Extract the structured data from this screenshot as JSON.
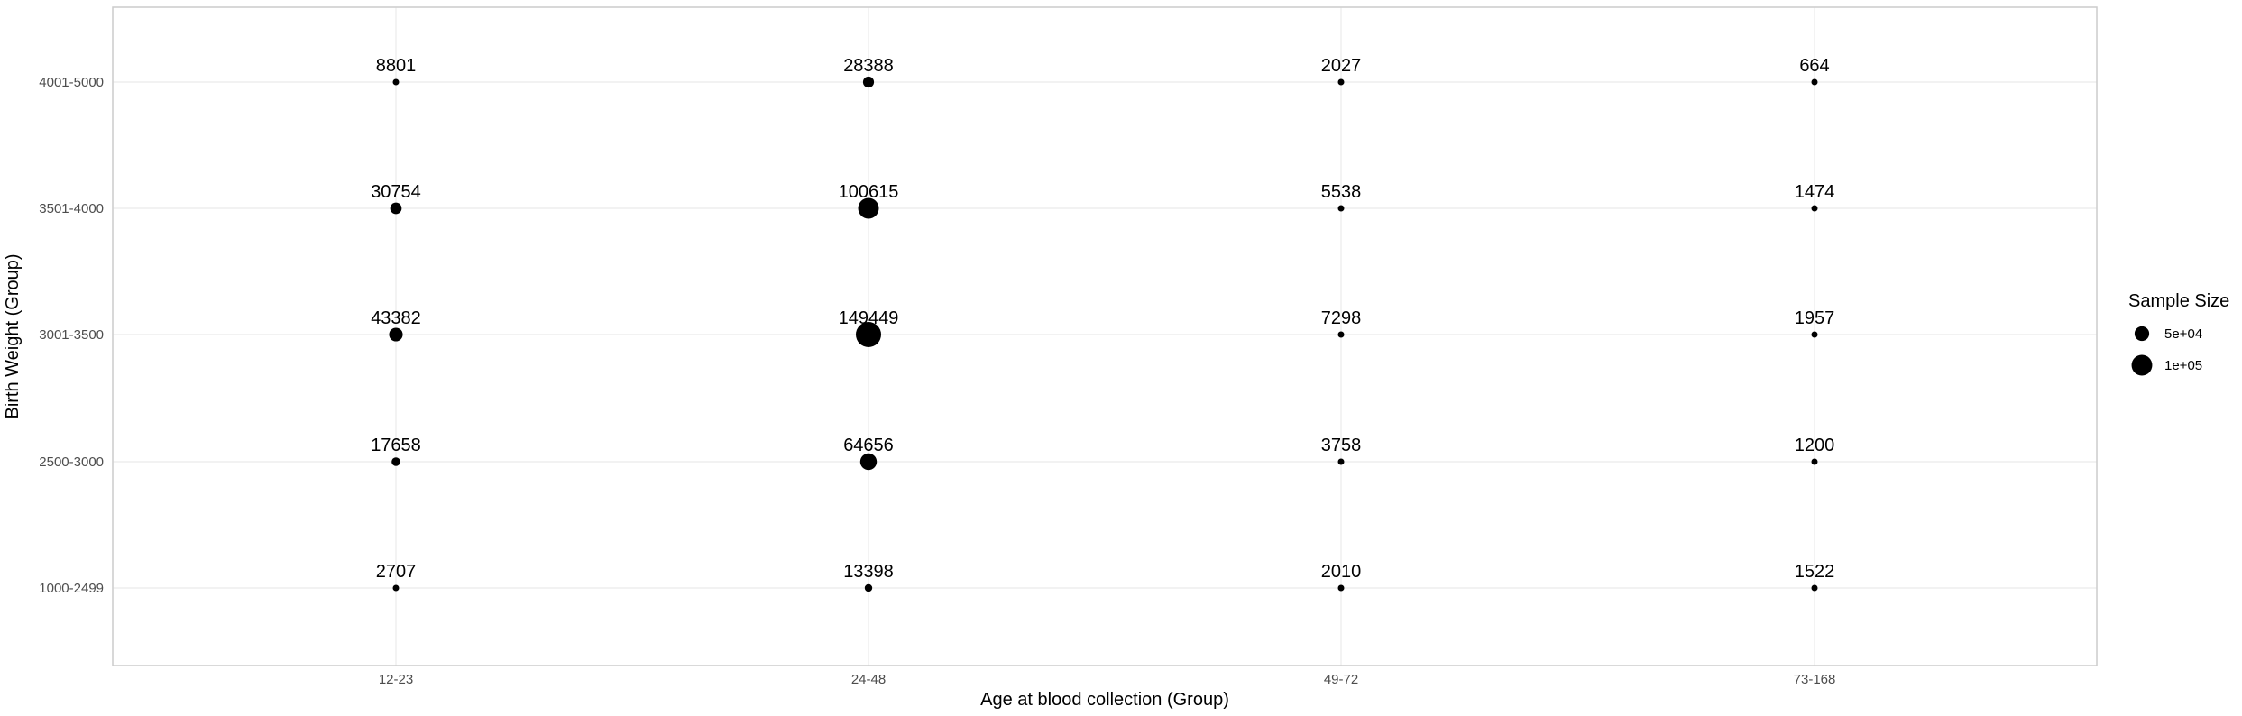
{
  "chart_data": {
    "type": "scatter",
    "title": "",
    "xlabel": "Age at blood collection (Group)",
    "ylabel": "Birth Weight (Group)",
    "x_categories": [
      "12-23",
      "24-48",
      "49-72",
      "73-168"
    ],
    "y_categories": [
      "1000-2499",
      "2500-3000",
      "3001-3500",
      "3501-4000",
      "4001-5000"
    ],
    "points": [
      {
        "x": "12-23",
        "y": "1000-2499",
        "n": 2707
      },
      {
        "x": "24-48",
        "y": "1000-2499",
        "n": 13398
      },
      {
        "x": "49-72",
        "y": "1000-2499",
        "n": 2010
      },
      {
        "x": "73-168",
        "y": "1000-2499",
        "n": 1522
      },
      {
        "x": "12-23",
        "y": "2500-3000",
        "n": 17658
      },
      {
        "x": "24-48",
        "y": "2500-3000",
        "n": 64656
      },
      {
        "x": "49-72",
        "y": "2500-3000",
        "n": 3758
      },
      {
        "x": "73-168",
        "y": "2500-3000",
        "n": 1200
      },
      {
        "x": "12-23",
        "y": "3001-3500",
        "n": 43382
      },
      {
        "x": "24-48",
        "y": "3001-3500",
        "n": 149449
      },
      {
        "x": "49-72",
        "y": "3001-3500",
        "n": 7298
      },
      {
        "x": "73-168",
        "y": "3001-3500",
        "n": 1957
      },
      {
        "x": "12-23",
        "y": "3501-4000",
        "n": 30754
      },
      {
        "x": "24-48",
        "y": "3501-4000",
        "n": 100615
      },
      {
        "x": "49-72",
        "y": "3501-4000",
        "n": 5538
      },
      {
        "x": "73-168",
        "y": "3501-4000",
        "n": 1474
      },
      {
        "x": "12-23",
        "y": "4001-5000",
        "n": 8801
      },
      {
        "x": "24-48",
        "y": "4001-5000",
        "n": 28388
      },
      {
        "x": "49-72",
        "y": "4001-5000",
        "n": 2027
      },
      {
        "x": "73-168",
        "y": "4001-5000",
        "n": 664
      }
    ],
    "legend": {
      "title": "Sample Size",
      "position": "right",
      "entries": [
        {
          "label": "5e+04",
          "value": 50000
        },
        {
          "label": "1e+05",
          "value": 100000
        }
      ]
    },
    "grid": true,
    "point_color": "#000000",
    "grid_color": "#ebebeb",
    "panel_border_color": "#cccccc"
  }
}
